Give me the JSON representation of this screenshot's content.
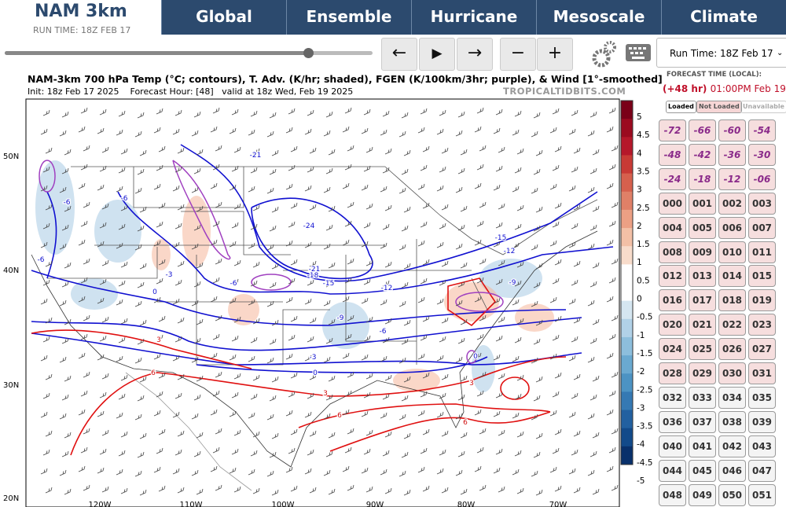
{
  "header": {
    "logo": "NAM 3km",
    "run_time": "RUN TIME: 18Z FEB 17"
  },
  "nav": [
    "Global",
    "Ensemble",
    "Hurricane",
    "Mesoscale",
    "Climate"
  ],
  "controls": {
    "prev": "←",
    "play": "▶",
    "next": "→",
    "minus": "−",
    "plus": "+",
    "run_select": "Run Time: 18Z Feb 17"
  },
  "map": {
    "title": "NAM-3km 700 hPa Temp (°C; contours), T. Adv. (K/hr; shaded), FGEN (K/100km/3hr; purple), & Wind [1°-smoothed]",
    "init": "Init: 18z Feb 17 2025",
    "forecast_hour": "Forecast Hour: [48]",
    "valid": "valid at 18z Wed, Feb 19 2025",
    "credit": "TROPICALTIDBITS.COM",
    "lat_labels": [
      "50N",
      "40N",
      "30N",
      "20N"
    ],
    "lon_labels": [
      "120W",
      "110W",
      "100W",
      "90W",
      "80W",
      "70W"
    ],
    "colorbar": [
      "5",
      "4.5",
      "4",
      "3.5",
      "3",
      "2.5",
      "2",
      "1.5",
      "1",
      "0.5",
      "0",
      "-0.5",
      "-1",
      "-1.5",
      "-2",
      "-2.5",
      "-3",
      "-3.5",
      "-4",
      "-4.5",
      "-5"
    ],
    "contour_labels": [
      "-21",
      "-24",
      "-21",
      "-18",
      "-15",
      "-12",
      "-9",
      "-6",
      "-3",
      "0",
      "3",
      "6",
      "3",
      "-6",
      "-6",
      "-6",
      "-3",
      "0",
      "-6",
      "-15",
      "-12",
      "-9",
      "3",
      "6",
      "6",
      "0"
    ]
  },
  "sidebar": {
    "forecast_label": "FORECAST TIME (LOCAL):",
    "offset": "(+48 hr)",
    "time": "01:00PM Feb 19",
    "legend": [
      "Loaded",
      "Not Loaded",
      "Unavailable"
    ],
    "hours": [
      "-72",
      "-66",
      "-60",
      "-54",
      "-48",
      "-42",
      "-36",
      "-30",
      "-24",
      "-18",
      "-12",
      "-06",
      "000",
      "001",
      "002",
      "003",
      "004",
      "005",
      "006",
      "007",
      "008",
      "009",
      "010",
      "011",
      "012",
      "013",
      "014",
      "015",
      "016",
      "017",
      "018",
      "019",
      "020",
      "021",
      "022",
      "023",
      "024",
      "025",
      "026",
      "027",
      "028",
      "029",
      "030",
      "031",
      "032",
      "033",
      "034",
      "035",
      "036",
      "037",
      "038",
      "039",
      "040",
      "041",
      "042",
      "043",
      "044",
      "045",
      "046",
      "047",
      "048",
      "049",
      "050",
      "051"
    ]
  }
}
